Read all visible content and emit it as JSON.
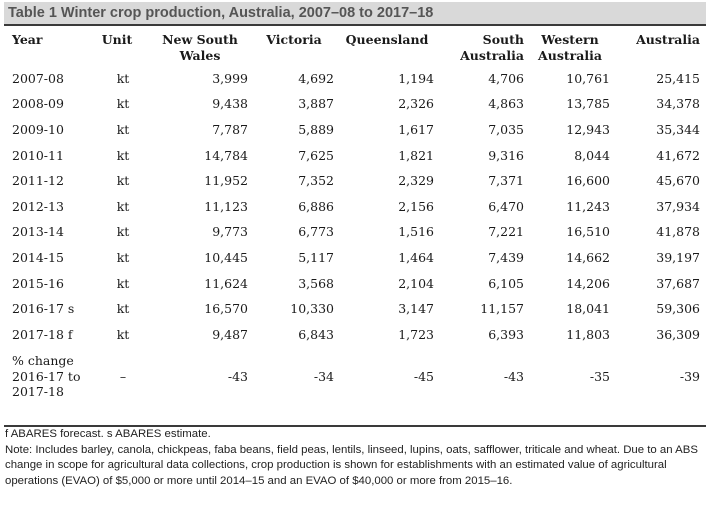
{
  "table": {
    "title": "Table 1 Winter crop production, Australia, 2007–08 to 2017–18",
    "headers": {
      "year": "Year",
      "unit": "Unit",
      "nsw": "New South Wales",
      "vic": "Victoria",
      "qld": "Queensland",
      "sa": "South Australia",
      "wa": "Western Australia",
      "aus": "Australia"
    },
    "rows": [
      {
        "year": "2007-08",
        "unit": "kt",
        "nsw": "3,999",
        "vic": "4,692",
        "qld": "1,194",
        "sa": "4,706",
        "wa": "10,761",
        "aus": "25,415"
      },
      {
        "year": "2008-09",
        "unit": "kt",
        "nsw": "9,438",
        "vic": "3,887",
        "qld": "2,326",
        "sa": "4,863",
        "wa": "13,785",
        "aus": "34,378"
      },
      {
        "year": "2009-10",
        "unit": "kt",
        "nsw": "7,787",
        "vic": "5,889",
        "qld": "1,617",
        "sa": "7,035",
        "wa": "12,943",
        "aus": "35,344"
      },
      {
        "year": "2010-11",
        "unit": "kt",
        "nsw": "14,784",
        "vic": "7,625",
        "qld": "1,821",
        "sa": "9,316",
        "wa": "8,044",
        "aus": "41,672"
      },
      {
        "year": "2011-12",
        "unit": "kt",
        "nsw": "11,952",
        "vic": "7,352",
        "qld": "2,329",
        "sa": "7,371",
        "wa": "16,600",
        "aus": "45,670"
      },
      {
        "year": "2012-13",
        "unit": "kt",
        "nsw": "11,123",
        "vic": "6,886",
        "qld": "2,156",
        "sa": "6,470",
        "wa": "11,243",
        "aus": "37,934"
      },
      {
        "year": "2013-14",
        "unit": "kt",
        "nsw": "9,773",
        "vic": "6,773",
        "qld": "1,516",
        "sa": "7,221",
        "wa": "16,510",
        "aus": "41,878"
      },
      {
        "year": "2014-15",
        "unit": "kt",
        "nsw": "10,445",
        "vic": "5,117",
        "qld": "1,464",
        "sa": "7,439",
        "wa": "14,662",
        "aus": "39,197"
      },
      {
        "year": "2015-16",
        "unit": "kt",
        "nsw": "11,624",
        "vic": "3,568",
        "qld": "2,104",
        "sa": "6,105",
        "wa": "14,206",
        "aus": "37,687"
      },
      {
        "year": "2016-17 s",
        "unit": "kt",
        "nsw": "16,570",
        "vic": "10,330",
        "qld": "3,147",
        "sa": "11,157",
        "wa": "18,041",
        "aus": "59,306"
      },
      {
        "year": "2017-18 f",
        "unit": "kt",
        "nsw": "9,487",
        "vic": "6,843",
        "qld": "1,723",
        "sa": "6,393",
        "wa": "11,803",
        "aus": "36,309"
      }
    ],
    "change_row": {
      "label_line1": "% change",
      "label_line2": "2016-17 to",
      "label_line3": "2017-18",
      "unit": "–",
      "nsw": "-43",
      "vic": "-34",
      "qld": "-45",
      "sa": "-43",
      "wa": "-35",
      "aus": "-39"
    }
  },
  "notes": {
    "legend": "f ABARES forecast. s ABARES estimate.",
    "note": "Note: Includes barley, canola, chickpeas, faba beans, field peas, lentils, linseed, lupins, oats, safflower, triticale and wheat. Due to an ABS change in scope for agricultural data collections, crop production is shown for establishments with an estimated value of agricultural operations (EVAO) of $5,000 or more until 2014–15 and an EVAO of $40,000 or more from 2015–16."
  }
}
